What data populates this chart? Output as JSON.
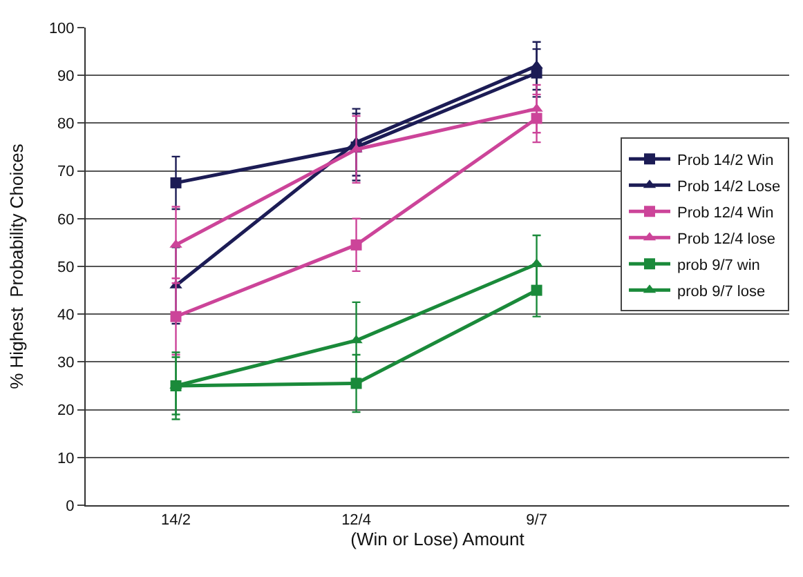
{
  "chart_data": {
    "type": "line",
    "xlabel": "(Win or Lose) Amount",
    "ylabel": "% Highest  Probability Choices",
    "categories": [
      "14/2",
      "12/4",
      "9/7"
    ],
    "ylim": [
      0,
      100
    ],
    "yticks": [
      0,
      10,
      20,
      30,
      40,
      50,
      60,
      70,
      80,
      90,
      100
    ],
    "grid": "y",
    "legend": "right",
    "line_style": "solid",
    "series": [
      {
        "name": "Prob 14/2 Win",
        "color": "#1c1c55",
        "marker": "square",
        "values": [
          67.5,
          75,
          90.5
        ],
        "errors": [
          5.5,
          7,
          5
        ]
      },
      {
        "name": "Prob 14/2 Lose",
        "color": "#1c1c55",
        "marker": "triangle",
        "values": [
          46,
          76,
          92
        ],
        "errors": [
          8,
          7,
          5
        ]
      },
      {
        "name": "Prob 12/4 Win",
        "color": "#cc4499",
        "marker": "square",
        "values": [
          39.5,
          54.5,
          81
        ],
        "errors": [
          8,
          5.5,
          5
        ]
      },
      {
        "name": "Prob 12/4 lose",
        "color": "#cc4499",
        "marker": "triangle",
        "values": [
          54.5,
          74.5,
          83
        ],
        "errors": [
          8,
          7,
          5
        ]
      },
      {
        "name": "prob 9/7 win",
        "color": "#1a8a3a",
        "marker": "square",
        "values": [
          25,
          25.5,
          45
        ],
        "errors": [
          6,
          6,
          5.5
        ]
      },
      {
        "name": "prob 9/7 lose",
        "color": "#1a8a3a",
        "marker": "triangle",
        "values": [
          25,
          34.5,
          50.5
        ],
        "errors": [
          7,
          8,
          6
        ]
      }
    ]
  }
}
